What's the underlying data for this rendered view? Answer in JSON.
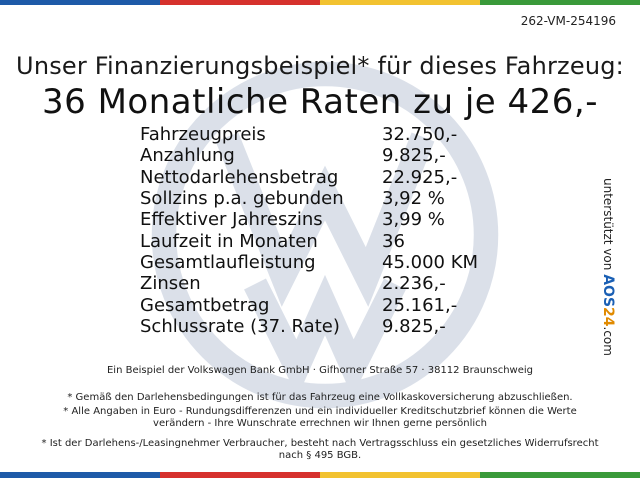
{
  "reference": "262-VM-254196",
  "headline": "Unser Finanzierungsbeispiel* für dieses Fahrzeug:",
  "subheadline": "36 Monatliche Raten zu je 426,-",
  "rows": [
    {
      "label": "Fahrzeugpreis",
      "value": "32.750,-"
    },
    {
      "label": "Anzahlung",
      "value": "9.825,-"
    },
    {
      "label": "Nettodarlehensbetrag",
      "value": "22.925,-"
    },
    {
      "label": "Sollzins p.a. gebunden",
      "value": "3,92 %"
    },
    {
      "label": "Effektiver Jahreszins",
      "value": "3,99 %"
    },
    {
      "label": "Laufzeit in Monaten",
      "value": "36"
    },
    {
      "label": "Gesamtlaufleistung",
      "value": "45.000 KM"
    },
    {
      "label": "Zinsen",
      "value": "2.236,-"
    },
    {
      "label": "Gesamtbetrag",
      "value": "25.161,-"
    },
    {
      "label": "Schlussrate (37. Rate)",
      "value": "9.825,-"
    }
  ],
  "side": {
    "prefix": "unterstützt von",
    "brand_a": "AOS",
    "brand_b": "24",
    "suffix": ".com"
  },
  "bank_line": "Ein Beispiel der Volkswagen Bank GmbH · Gifhorner Straße 57 · 38112 Braunschweig",
  "notes": [
    "* Gemäß den Darlehensbedingungen ist für das Fahrzeug eine Vollkaskoversicherung abzuschließen.",
    "* Alle Angaben in Euro - Rundungsdifferenzen und ein individueller Kreditschutzbrief können die Werte verändern - Ihre Wunschrate errechnen wir Ihnen gerne persönlich",
    "* Ist der Darlehens-/Leasingnehmer Verbraucher, besteht nach Vertragsschluss ein gesetzliches Widerrufsrecht nach § 495 BGB."
  ],
  "colors": {
    "stripe": [
      "#1e5aa8",
      "#d6312d",
      "#f2c230",
      "#3a9a3a"
    ],
    "watermark": "#7f93b3"
  },
  "icons": {
    "watermark": "vw-logo-icon"
  }
}
